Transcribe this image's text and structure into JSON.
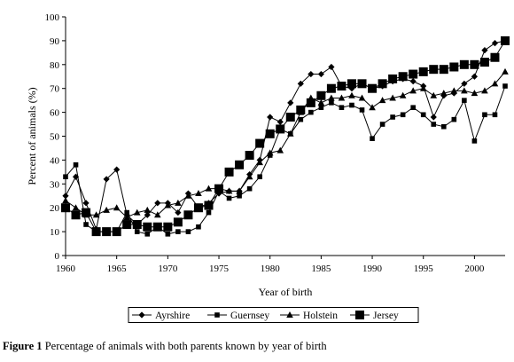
{
  "chart_data": {
    "type": "line",
    "xlabel": "Year of birth",
    "ylabel": "Percent of animals (%)",
    "xlim": [
      1960,
      2003
    ],
    "ylim": [
      0,
      100
    ],
    "xticks": [
      1960,
      1965,
      1970,
      1975,
      1980,
      1985,
      1990,
      1995,
      2000
    ],
    "yticks": [
      0,
      10,
      20,
      30,
      40,
      50,
      60,
      70,
      80,
      90,
      100
    ],
    "grid": false,
    "legend_position": "bottom",
    "x": [
      1960,
      1961,
      1962,
      1963,
      1964,
      1965,
      1966,
      1967,
      1968,
      1969,
      1970,
      1971,
      1972,
      1973,
      1974,
      1975,
      1976,
      1977,
      1978,
      1979,
      1980,
      1981,
      1982,
      1983,
      1984,
      1985,
      1986,
      1987,
      1988,
      1989,
      1990,
      1991,
      1992,
      1993,
      1994,
      1995,
      1996,
      1997,
      1998,
      1999,
      2000,
      2001,
      2002,
      2003
    ],
    "series": [
      {
        "name": "Ayrshire",
        "marker": "diamond",
        "values": [
          25,
          33,
          22,
          11,
          32,
          36,
          17,
          13,
          17,
          22,
          22,
          18,
          26,
          20,
          22,
          26,
          27,
          27,
          34,
          40,
          58,
          56,
          64,
          72,
          76,
          76,
          79,
          71,
          70,
          72,
          70,
          71,
          73,
          74,
          73,
          71,
          58,
          67,
          68,
          72,
          75,
          86,
          89,
          90
        ]
      },
      {
        "name": "Guernsey",
        "marker": "square-small",
        "values": [
          33,
          38,
          13,
          10,
          10,
          10,
          18,
          10,
          9,
          12,
          9,
          10,
          10,
          12,
          18,
          27,
          24,
          25,
          28,
          33,
          42,
          53,
          51,
          57,
          60,
          62,
          64,
          62,
          63,
          61,
          49,
          55,
          58,
          59,
          62,
          59,
          55,
          54,
          57,
          65,
          48,
          59,
          59,
          71
        ]
      },
      {
        "name": "Holstein",
        "marker": "triangle",
        "values": [
          23,
          20,
          17,
          17,
          19,
          20,
          16,
          18,
          19,
          17,
          21,
          22,
          25,
          26,
          28,
          28,
          27,
          27,
          33,
          39,
          43,
          44,
          51,
          60,
          66,
          64,
          66,
          66,
          67,
          66,
          62,
          65,
          66,
          67,
          69,
          70,
          67,
          68,
          69,
          69,
          68,
          69,
          72,
          77
        ]
      },
      {
        "name": "Jersey",
        "marker": "square-large",
        "values": [
          20,
          17,
          18,
          10,
          10,
          10,
          13,
          13,
          12,
          12,
          12,
          14,
          17,
          20,
          21,
          28,
          35,
          38,
          42,
          47,
          51,
          53,
          58,
          61,
          64,
          67,
          70,
          71,
          72,
          72,
          70,
          72,
          74,
          75,
          76,
          77,
          78,
          78,
          79,
          80,
          80,
          81,
          83,
          90
        ]
      }
    ]
  },
  "caption": {
    "label": "Figure 1",
    "text": "Percentage of animals with both parents known by year of birth"
  }
}
